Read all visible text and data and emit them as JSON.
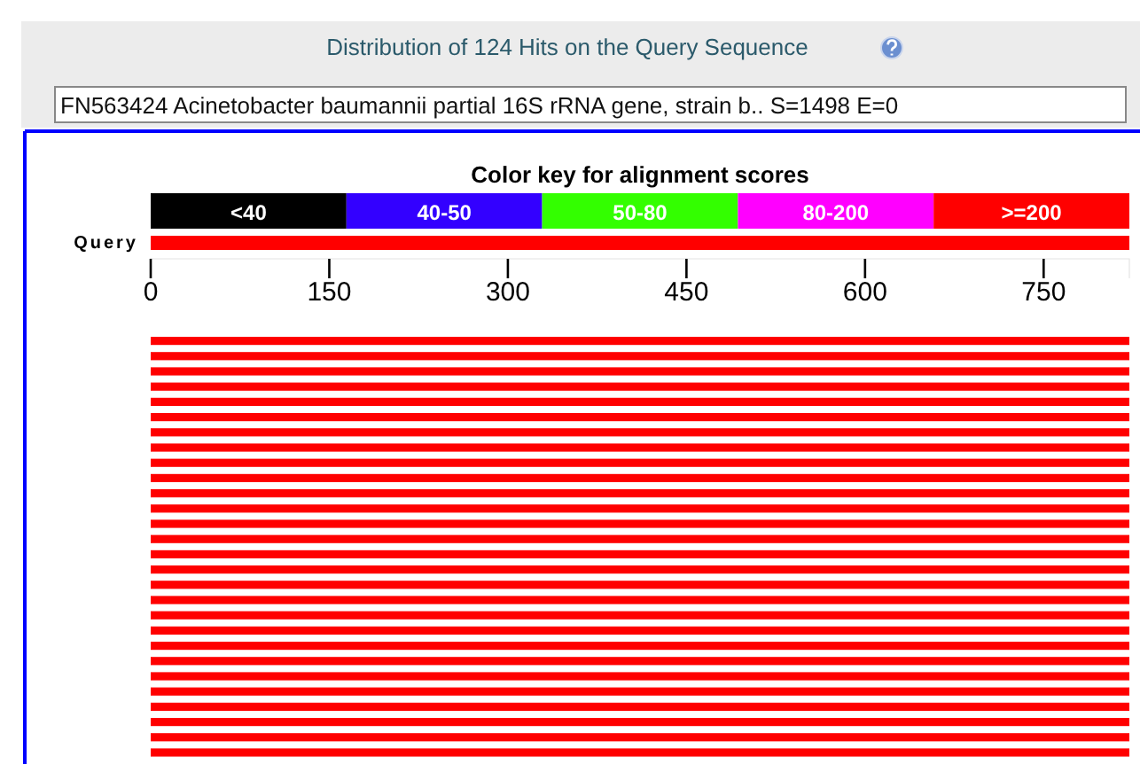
{
  "chart_data": [
    {
      "type": "other",
      "title": "Color key for alignment scores",
      "categories": [
        "<40",
        "40-50",
        "50-80",
        "80-200",
        ">=200"
      ],
      "colors": [
        "#000000",
        "#3300ff",
        "#33ff00",
        "#ff00ff",
        "#ff0000"
      ]
    },
    {
      "type": "bar",
      "orientation": "horizontal",
      "title": "Distribution of 124 Hits on the Query Sequence",
      "subtitle": "FN563424 Acinetobacter baumannii partial 16S rRNA gene, strain b.. S=1498 E=0",
      "categories": [
        "Query"
      ],
      "xlim": [
        0,
        822
      ],
      "xticks": [
        0,
        150,
        300,
        450,
        600,
        750
      ],
      "series": [
        {
          "color": "#ff0000",
          "values": [
            822
          ]
        }
      ]
    },
    {
      "type": "bar",
      "orientation": "horizontal",
      "categories": [
        null,
        null,
        null,
        null,
        null,
        null,
        null,
        null,
        null,
        null,
        null,
        null,
        null,
        null,
        null,
        null,
        null,
        null,
        null,
        null,
        null,
        null,
        null,
        null,
        null,
        null,
        null,
        null
      ],
      "xlim": [
        0,
        822
      ],
      "series": [
        {
          "color": "#ff0000",
          "values": [
            822,
            822,
            822,
            822,
            822,
            822,
            822,
            822,
            822,
            822,
            822,
            822,
            822,
            822,
            822,
            822,
            822,
            822,
            822,
            822,
            822,
            822,
            822,
            822,
            822,
            822,
            822,
            822
          ]
        }
      ]
    }
  ]
}
